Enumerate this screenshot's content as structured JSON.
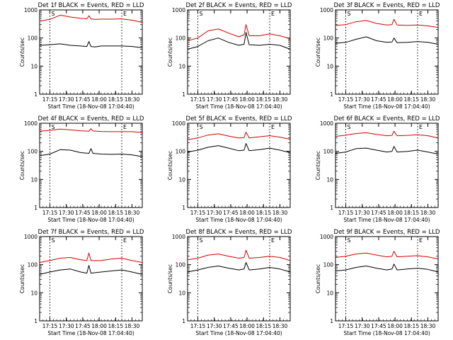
{
  "figure": {
    "colors": {
      "events": "#000000",
      "lld": "#d40000",
      "axes": "#000000",
      "background": "#ffffff"
    }
  },
  "chart_data": [
    {
      "type": "line",
      "title": "Det 1f BLACK = Events, RED = LLD",
      "xlabel": "Start Time (18-Nov-08 17:04:40)",
      "ylabel": "Counts/sec",
      "yscale": "log",
      "ylim": [
        1,
        1000
      ],
      "xlim": [
        0,
        100
      ],
      "x_tick_labels": [
        "17:15",
        "17:30",
        "17:45",
        "18:00",
        "18:15",
        "18:30"
      ],
      "y_tick_labels": [
        "1",
        "10",
        "100",
        "1000"
      ],
      "markers": [
        "S",
        "E"
      ],
      "series": [
        {
          "name": "LLD",
          "color": "#d40000",
          "x": [
            0,
            10,
            20,
            30,
            40,
            46,
            48,
            50,
            54,
            60,
            70,
            80,
            90,
            100
          ],
          "y": [
            400,
            460,
            650,
            560,
            500,
            480,
            620,
            480,
            460,
            470,
            470,
            480,
            430,
            360
          ]
        },
        {
          "name": "Events",
          "color": "#000000",
          "x": [
            0,
            10,
            20,
            30,
            40,
            46,
            48,
            50,
            54,
            60,
            70,
            80,
            90,
            100
          ],
          "y": [
            55,
            58,
            62,
            55,
            52,
            50,
            75,
            50,
            48,
            52,
            52,
            52,
            50,
            45
          ]
        }
      ]
    },
    {
      "type": "line",
      "title": "Det 2f BLACK = Events, RED = LLD",
      "xlabel": "Start Time (18-Nov-08 17:04:40)",
      "ylabel": "Counts/sec",
      "yscale": "log",
      "ylim": [
        1,
        1000
      ],
      "xlim": [
        0,
        100
      ],
      "x_tick_labels": [
        "17:15",
        "17:30",
        "17:45",
        "18:00",
        "18:15",
        "18:30"
      ],
      "y_tick_labels": [
        "1",
        "10",
        "100",
        "1000"
      ],
      "markers": [
        "S",
        "E"
      ],
      "series": [
        {
          "name": "LLD",
          "color": "#d40000",
          "x": [
            0,
            10,
            20,
            30,
            40,
            50,
            55,
            57,
            60,
            70,
            80,
            90,
            100
          ],
          "y": [
            80,
            100,
            180,
            210,
            150,
            110,
            130,
            300,
            120,
            120,
            140,
            120,
            95
          ]
        },
        {
          "name": "Events",
          "color": "#000000",
          "x": [
            0,
            10,
            20,
            30,
            40,
            50,
            55,
            57,
            60,
            70,
            80,
            90,
            100
          ],
          "y": [
            40,
            50,
            80,
            100,
            70,
            55,
            60,
            160,
            58,
            55,
            60,
            55,
            40
          ]
        }
      ]
    },
    {
      "type": "line",
      "title": "Det 3f BLACK = Events, RED = LLD",
      "xlabel": "Start Time (18-Nov-08 17:04:40)",
      "ylabel": "Counts/sec",
      "yscale": "log",
      "ylim": [
        1,
        1000
      ],
      "xlim": [
        0,
        100
      ],
      "x_tick_labels": [
        "17:15",
        "17:30",
        "17:45",
        "18:00",
        "18:15",
        "18:30"
      ],
      "y_tick_labels": [
        "1",
        "10",
        "100",
        "1000"
      ],
      "markers": [
        "S",
        "E"
      ],
      "series": [
        {
          "name": "LLD",
          "color": "#d40000",
          "x": [
            0,
            10,
            20,
            30,
            40,
            50,
            55,
            57,
            60,
            70,
            80,
            90,
            100
          ],
          "y": [
            280,
            300,
            380,
            420,
            330,
            290,
            300,
            460,
            290,
            280,
            290,
            270,
            240
          ]
        },
        {
          "name": "Events",
          "color": "#000000",
          "x": [
            0,
            10,
            20,
            30,
            40,
            50,
            55,
            57,
            60,
            70,
            80,
            90,
            100
          ],
          "y": [
            65,
            70,
            90,
            110,
            80,
            70,
            72,
            100,
            68,
            70,
            75,
            70,
            60
          ]
        }
      ]
    },
    {
      "type": "line",
      "title": "Det 4f BLACK = Events, RED = LLD",
      "xlabel": "Start Time (18-Nov-08 17:04:40)",
      "ylabel": "Counts/sec",
      "yscale": "log",
      "ylim": [
        1,
        1000
      ],
      "xlim": [
        0,
        100
      ],
      "x_tick_labels": [
        "17:15",
        "17:30",
        "17:45",
        "18:00",
        "18:15",
        "18:30"
      ],
      "y_tick_labels": [
        "1",
        "10",
        "100",
        "1000"
      ],
      "markers": [
        "S",
        "E"
      ],
      "series": [
        {
          "name": "LLD",
          "color": "#d40000",
          "x": [
            0,
            10,
            20,
            30,
            40,
            48,
            50,
            52,
            60,
            70,
            80,
            90,
            100
          ],
          "y": [
            520,
            560,
            620,
            580,
            540,
            520,
            640,
            530,
            510,
            500,
            500,
            500,
            470
          ]
        },
        {
          "name": "Events",
          "color": "#000000",
          "x": [
            0,
            10,
            20,
            30,
            40,
            48,
            50,
            52,
            60,
            70,
            80,
            90,
            100
          ],
          "y": [
            70,
            80,
            115,
            110,
            90,
            85,
            125,
            85,
            80,
            78,
            80,
            75,
            65
          ]
        }
      ]
    },
    {
      "type": "line",
      "title": "Det 5f BLACK = Events, RED = LLD",
      "xlabel": "Start Time (18-Nov-08 17:04:40)",
      "ylabel": "Counts/sec",
      "yscale": "log",
      "ylim": [
        1,
        1000
      ],
      "xlim": [
        0,
        100
      ],
      "x_tick_labels": [
        "17:15",
        "17:30",
        "17:45",
        "18:00",
        "18:15",
        "18:30"
      ],
      "y_tick_labels": [
        "1",
        "10",
        "100",
        "1000"
      ],
      "markers": [
        "S",
        "E"
      ],
      "series": [
        {
          "name": "LLD",
          "color": "#d40000",
          "x": [
            0,
            10,
            20,
            30,
            40,
            50,
            55,
            57,
            60,
            70,
            80,
            90,
            100
          ],
          "y": [
            260,
            300,
            380,
            420,
            350,
            300,
            310,
            480,
            300,
            330,
            360,
            320,
            270
          ]
        },
        {
          "name": "Events",
          "color": "#000000",
          "x": [
            0,
            10,
            20,
            30,
            40,
            50,
            55,
            57,
            60,
            70,
            80,
            90,
            100
          ],
          "y": [
            95,
            110,
            140,
            160,
            130,
            105,
            110,
            190,
            105,
            115,
            130,
            110,
            90
          ]
        }
      ]
    },
    {
      "type": "line",
      "title": "Det 6f BLACK = Events, RED = LLD",
      "xlabel": "Start Time (18-Nov-08 17:04:40)",
      "ylabel": "Counts/sec",
      "yscale": "log",
      "ylim": [
        1,
        1000
      ],
      "xlim": [
        0,
        100
      ],
      "x_tick_labels": [
        "17:15",
        "17:30",
        "17:45",
        "18:00",
        "18:15",
        "18:30"
      ],
      "y_tick_labels": [
        "1",
        "10",
        "100",
        "1000"
      ],
      "markers": [
        "S",
        "E"
      ],
      "series": [
        {
          "name": "LLD",
          "color": "#d40000",
          "x": [
            0,
            10,
            20,
            30,
            40,
            50,
            55,
            57,
            60,
            70,
            80,
            90,
            100
          ],
          "y": [
            340,
            380,
            430,
            460,
            400,
            360,
            370,
            520,
            360,
            370,
            390,
            360,
            300
          ]
        },
        {
          "name": "Events",
          "color": "#000000",
          "x": [
            0,
            10,
            20,
            30,
            40,
            50,
            55,
            57,
            60,
            70,
            80,
            90,
            100
          ],
          "y": [
            85,
            95,
            125,
            130,
            110,
            95,
            100,
            150,
            95,
            100,
            110,
            95,
            80
          ]
        }
      ]
    },
    {
      "type": "line",
      "title": "Det 7f BLACK = Events, RED = LLD",
      "xlabel": "Start Time (18-Nov-08 17:04:40)",
      "ylabel": "Counts/sec",
      "yscale": "log",
      "ylim": [
        1,
        1000
      ],
      "xlim": [
        0,
        100
      ],
      "x_tick_labels": [
        "17:15",
        "17:30",
        "17:45",
        "18:00",
        "18:15",
        "18:30"
      ],
      "y_tick_labels": [
        "1",
        "10",
        "100",
        "1000"
      ],
      "markers": [
        "S",
        "E"
      ],
      "series": [
        {
          "name": "LLD",
          "color": "#d40000",
          "x": [
            0,
            10,
            20,
            30,
            40,
            46,
            48,
            50,
            60,
            70,
            80,
            90,
            100
          ],
          "y": [
            120,
            140,
            170,
            180,
            150,
            140,
            260,
            140,
            140,
            160,
            170,
            140,
            120
          ]
        },
        {
          "name": "Events",
          "color": "#000000",
          "x": [
            0,
            10,
            20,
            30,
            40,
            46,
            48,
            50,
            60,
            70,
            80,
            90,
            100
          ],
          "y": [
            45,
            55,
            65,
            70,
            55,
            50,
            95,
            50,
            55,
            60,
            65,
            55,
            45
          ]
        }
      ]
    },
    {
      "type": "line",
      "title": "Det 8f BLACK = Events, RED = LLD",
      "xlabel": "Start Time (18-Nov-08 17:04:40)",
      "ylabel": "Counts/sec",
      "yscale": "log",
      "ylim": [
        1,
        1000
      ],
      "xlim": [
        0,
        100
      ],
      "x_tick_labels": [
        "17:15",
        "17:30",
        "17:45",
        "18:00",
        "18:15",
        "18:30"
      ],
      "y_tick_labels": [
        "1",
        "10",
        "100",
        "1000"
      ],
      "markers": [
        "S",
        "E"
      ],
      "series": [
        {
          "name": "LLD",
          "color": "#d40000",
          "x": [
            0,
            10,
            20,
            30,
            40,
            50,
            55,
            57,
            60,
            70,
            80,
            90,
            100
          ],
          "y": [
            150,
            170,
            220,
            240,
            200,
            170,
            180,
            330,
            170,
            180,
            200,
            180,
            140
          ]
        },
        {
          "name": "Events",
          "color": "#000000",
          "x": [
            0,
            10,
            20,
            30,
            40,
            50,
            55,
            57,
            60,
            70,
            80,
            90,
            100
          ],
          "y": [
            55,
            65,
            80,
            90,
            75,
            65,
            70,
            120,
            65,
            70,
            80,
            70,
            55
          ]
        }
      ]
    },
    {
      "type": "line",
      "title": "Det 9f BLACK = Events, RED = LLD",
      "xlabel": "Start Time (18-Nov-08 17:04:40)",
      "ylabel": "Counts/sec",
      "yscale": "log",
      "ylim": [
        1,
        1000
      ],
      "xlim": [
        0,
        100
      ],
      "x_tick_labels": [
        "17:15",
        "17:30",
        "17:45",
        "18:00",
        "18:15",
        "18:30"
      ],
      "y_tick_labels": [
        "1",
        "10",
        "100",
        "1000"
      ],
      "markers": [
        "S",
        "E"
      ],
      "series": [
        {
          "name": "LLD",
          "color": "#d40000",
          "x": [
            0,
            10,
            20,
            30,
            40,
            50,
            55,
            57,
            60,
            70,
            80,
            90,
            100
          ],
          "y": [
            180,
            200,
            240,
            260,
            220,
            190,
            200,
            300,
            190,
            200,
            210,
            190,
            160
          ]
        },
        {
          "name": "Events",
          "color": "#000000",
          "x": [
            0,
            10,
            20,
            30,
            40,
            50,
            55,
            57,
            60,
            70,
            80,
            90,
            100
          ],
          "y": [
            60,
            65,
            80,
            90,
            75,
            65,
            70,
            105,
            65,
            70,
            75,
            68,
            55
          ]
        }
      ]
    }
  ]
}
